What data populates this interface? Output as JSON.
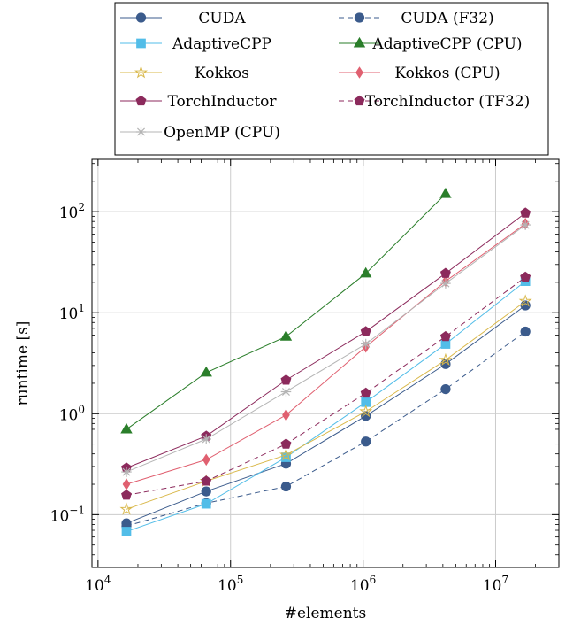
{
  "chart_data": {
    "type": "line",
    "xlabel": "#elements",
    "ylabel": "runtime [s]",
    "xscale": "log",
    "yscale": "log",
    "xlim": [
      9000,
      30000000
    ],
    "ylim": [
      0.03,
      330
    ],
    "grid": true,
    "legend_position": "top (outside plot)",
    "x_tick_labels": [
      {
        "value": 10000,
        "base": "10",
        "exp": "4"
      },
      {
        "value": 100000,
        "base": "10",
        "exp": "5"
      },
      {
        "value": 1000000,
        "base": "10",
        "exp": "6"
      },
      {
        "value": 10000000,
        "base": "10",
        "exp": "7"
      }
    ],
    "y_tick_labels": [
      {
        "value": 0.1,
        "base": "10",
        "exp": "−1"
      },
      {
        "value": 1,
        "base": "10",
        "exp": "0"
      },
      {
        "value": 10,
        "base": "10",
        "exp": "1"
      },
      {
        "value": 100,
        "base": "10",
        "exp": "2"
      }
    ],
    "series": [
      {
        "name": "CUDA",
        "color": "#3b5b8c",
        "marker": "circle",
        "dash": false,
        "x": [
          16384,
          65536,
          262144,
          1048576,
          4194304,
          16777216
        ],
        "y": [
          0.082,
          0.17,
          0.32,
          0.95,
          3.1,
          11.8
        ]
      },
      {
        "name": "CUDA (F32)",
        "color": "#3b5b8c",
        "marker": "circle",
        "dash": true,
        "x": [
          16384,
          65536,
          262144,
          1048576,
          4194304,
          16777216
        ],
        "y": [
          0.077,
          0.13,
          0.19,
          0.53,
          1.75,
          6.5
        ]
      },
      {
        "name": "AdaptiveCPP",
        "color": "#52bde8",
        "marker": "square",
        "dash": false,
        "x": [
          16384,
          65536,
          262144,
          1048576,
          4194304,
          16777216
        ],
        "y": [
          0.068,
          0.128,
          0.37,
          1.3,
          4.9,
          20.5
        ]
      },
      {
        "name": "AdaptiveCPP (CPU)",
        "color": "#2a7e2a",
        "marker": "triangle",
        "dash": false,
        "x": [
          16384,
          65536,
          262144,
          1048576,
          4194304
        ],
        "y": [
          0.7,
          2.55,
          5.8,
          24.5,
          150
        ]
      },
      {
        "name": "Kokkos",
        "color": "#d9b84a",
        "marker": "star",
        "dash": false,
        "x": [
          16384,
          65536,
          262144,
          1048576,
          4194304,
          16777216
        ],
        "y": [
          0.113,
          0.215,
          0.39,
          1.05,
          3.4,
          13.0
        ]
      },
      {
        "name": "Kokkos (CPU)",
        "color": "#e06070",
        "marker": "diamond",
        "dash": false,
        "x": [
          16384,
          65536,
          262144,
          1048576,
          4194304,
          16777216
        ],
        "y": [
          0.2,
          0.35,
          0.97,
          4.6,
          20.5,
          76
        ]
      },
      {
        "name": "TorchInductor",
        "color": "#8c2a5c",
        "marker": "pentagon",
        "dash": false,
        "x": [
          16384,
          65536,
          262144,
          1048576,
          4194304,
          16777216
        ],
        "y": [
          0.29,
          0.6,
          2.15,
          6.5,
          24.5,
          97
        ]
      },
      {
        "name": "TorchInductor (TF32)",
        "color": "#8c2a5c",
        "marker": "pentagon",
        "dash": true,
        "x": [
          16384,
          65536,
          262144,
          1048576,
          4194304,
          16777216
        ],
        "y": [
          0.156,
          0.215,
          0.5,
          1.6,
          5.8,
          22.5
        ]
      },
      {
        "name": "OpenMP (CPU)",
        "color": "#b5b5b5",
        "marker": "asterisk",
        "dash": false,
        "x": [
          16384,
          65536,
          262144,
          1048576,
          4194304,
          16777216
        ],
        "y": [
          0.265,
          0.56,
          1.65,
          4.9,
          19.5,
          74
        ]
      }
    ]
  }
}
